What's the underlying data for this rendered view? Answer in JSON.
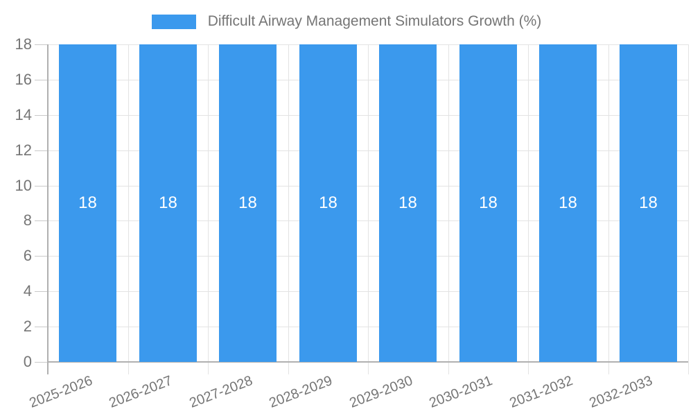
{
  "legend": {
    "label": "Difficult Airway Management Simulators Growth (%)"
  },
  "chart_data": {
    "type": "bar",
    "title": "Difficult Airway Management Simulators Growth (%)",
    "categories": [
      "2025-2026",
      "2026-2027",
      "2027-2028",
      "2028-2029",
      "2029-2030",
      "2030-2031",
      "2031-2032",
      "2032-2033"
    ],
    "series": [
      {
        "name": "Difficult Airway Management Simulators Growth (%)",
        "values": [
          18,
          18,
          18,
          18,
          18,
          18,
          18,
          18
        ]
      }
    ],
    "bar_labels": [
      "18",
      "18",
      "18",
      "18",
      "18",
      "18",
      "18",
      "18"
    ],
    "xlabel": "",
    "ylabel": "",
    "ylim": [
      0,
      18
    ],
    "yticks": [
      0,
      2,
      4,
      6,
      8,
      10,
      12,
      14,
      16,
      18
    ],
    "grid": true,
    "legend_position": "top-center",
    "colors": {
      "bar": "#3B99ED",
      "value_label": "#ffffff",
      "axis_text": "#757575",
      "title_text": "#757575",
      "grid_line": "#e3e3e3",
      "tick_line": "#c9c9c9",
      "axis_line": "#b0b0b0",
      "background": "#ffffff"
    }
  }
}
